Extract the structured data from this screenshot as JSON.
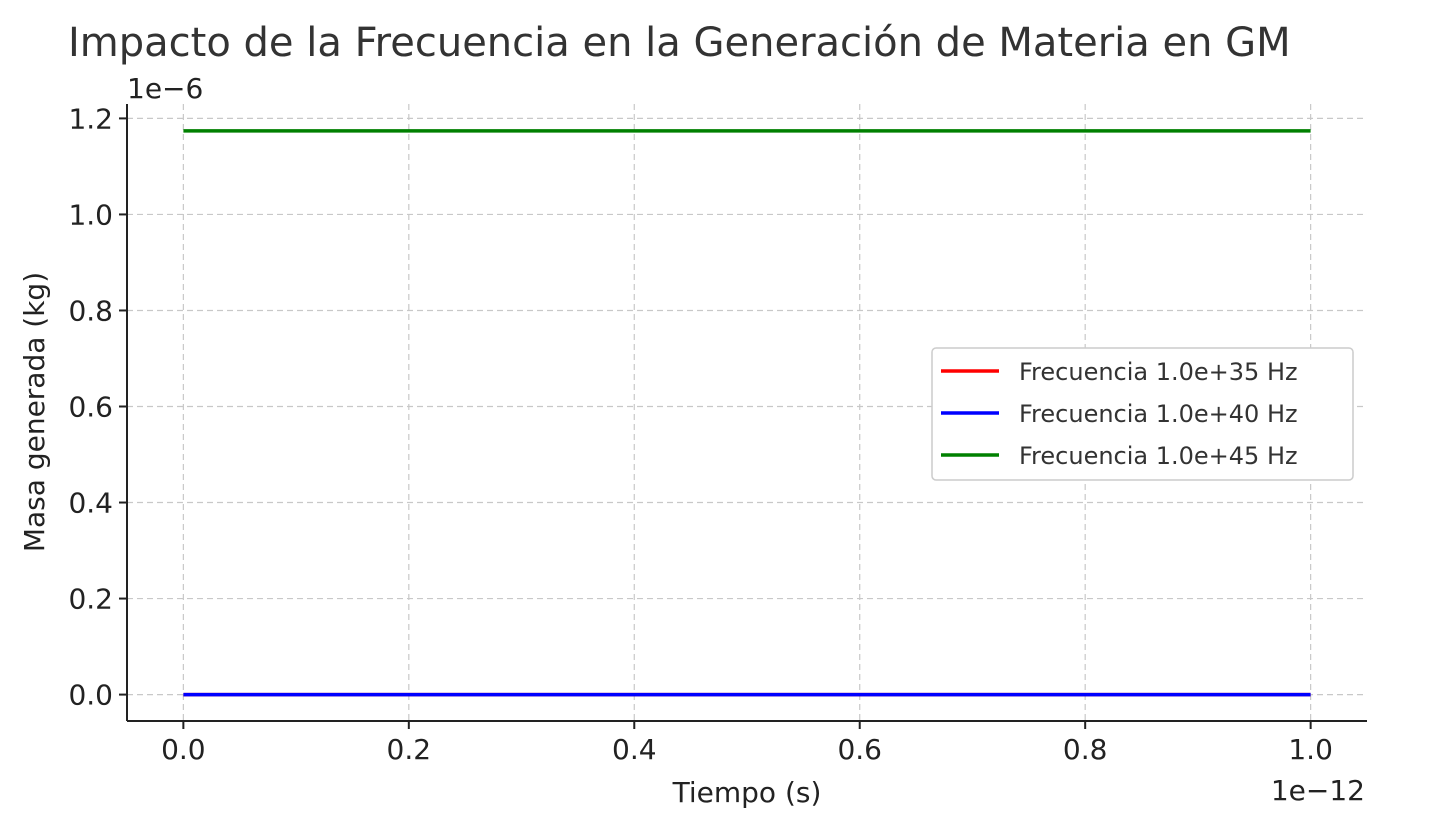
{
  "chart_data": {
    "type": "line",
    "title": "Impacto de la Frecuencia en la Generación de Materia en GM",
    "xlabel": "Tiempo (s)",
    "ylabel": "Masa generada (kg)",
    "x_offset_text": "1e−12",
    "y_offset_text": "1e−6",
    "x": [
      0.0,
      1.0
    ],
    "xlim": [
      -0.05,
      1.05
    ],
    "ylim": [
      -0.055,
      1.23
    ],
    "x_ticks": [
      0.0,
      0.2,
      0.4,
      0.6,
      0.8,
      1.0
    ],
    "x_tick_labels": [
      "0.0",
      "0.2",
      "0.4",
      "0.6",
      "0.8",
      "1.0"
    ],
    "y_ticks": [
      0.0,
      0.2,
      0.4,
      0.6,
      0.8,
      1.0,
      1.2
    ],
    "y_tick_labels": [
      "0.0",
      "0.2",
      "0.4",
      "0.6",
      "0.8",
      "1.0",
      "1.2"
    ],
    "grid": true,
    "legend_position": "center-right",
    "series": [
      {
        "name": "Frecuencia 1.0e+35 Hz",
        "color": "#ff0000",
        "values": [
          0.0,
          0.0
        ]
      },
      {
        "name": "Frecuencia 1.0e+40 Hz",
        "color": "#0000ff",
        "values": [
          0.0,
          0.0
        ]
      },
      {
        "name": "Frecuencia 1.0e+45 Hz",
        "color": "#008000",
        "values": [
          1.174,
          1.174
        ]
      }
    ]
  }
}
